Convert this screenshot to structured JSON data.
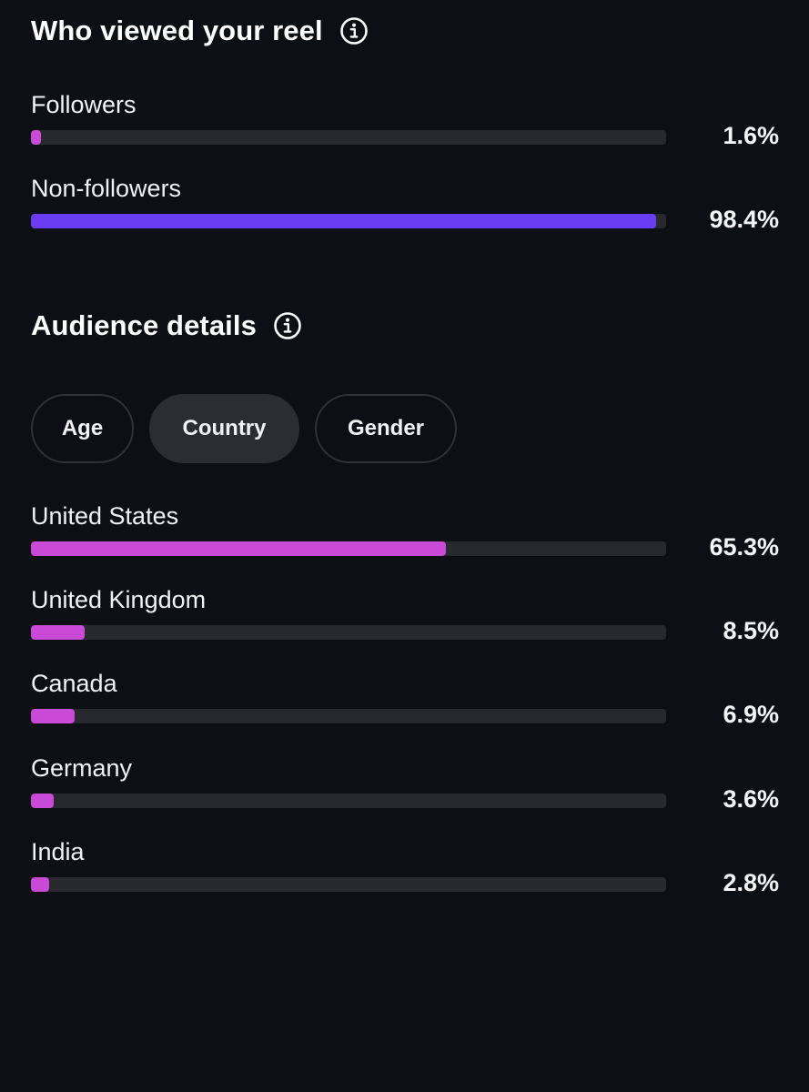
{
  "viewers": {
    "title": "Who viewed your reel",
    "icon": "info-icon",
    "rows": [
      {
        "label": "Followers",
        "value": "1.6%",
        "fraction": 0.016,
        "color": "#c84ad6"
      },
      {
        "label": "Non-followers",
        "value": "98.4%",
        "fraction": 0.984,
        "color": "#6a3cf2"
      }
    ]
  },
  "audience": {
    "title": "Audience details",
    "icon": "info-icon",
    "tabs": [
      {
        "label": "Age",
        "active": false
      },
      {
        "label": "Country",
        "active": true
      },
      {
        "label": "Gender",
        "active": false
      }
    ],
    "rows": [
      {
        "label": "United States",
        "value": "65.3%",
        "fraction": 0.653,
        "color": "#c84ad6"
      },
      {
        "label": "United Kingdom",
        "value": "8.5%",
        "fraction": 0.085,
        "color": "#c84ad6"
      },
      {
        "label": "Canada",
        "value": "6.9%",
        "fraction": 0.069,
        "color": "#c84ad6"
      },
      {
        "label": "Germany",
        "value": "3.6%",
        "fraction": 0.036,
        "color": "#c84ad6"
      },
      {
        "label": "India",
        "value": "2.8%",
        "fraction": 0.028,
        "color": "#c84ad6"
      }
    ]
  }
}
